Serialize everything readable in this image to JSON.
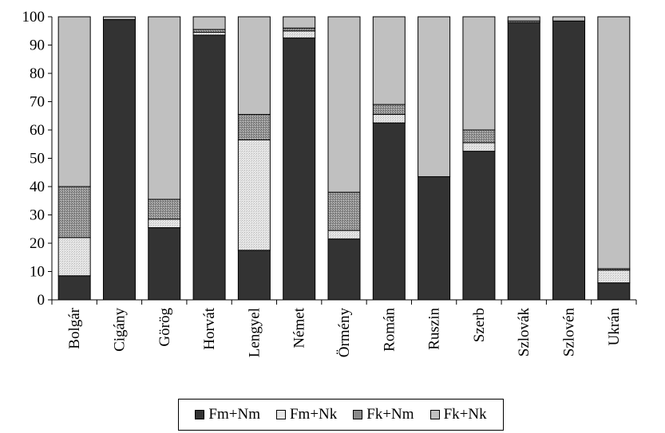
{
  "chart_data": {
    "type": "bar",
    "stacked": true,
    "categories": [
      "Bolgár",
      "Cigány",
      "Görög",
      "Horvát",
      "Lengyel",
      "Német",
      "Örmény",
      "Román",
      "Ruszin",
      "Szerb",
      "Szlovák",
      "Szlovén",
      "Ukrán"
    ],
    "series": [
      {
        "name": "Fm+Nm",
        "color": "#333333",
        "values": [
          8.5,
          99.0,
          25.5,
          93.5,
          17.5,
          92.5,
          21.5,
          62.5,
          43.5,
          52.5,
          98.0,
          98.5,
          6.0
        ]
      },
      {
        "name": "Fm+Nk",
        "color": "#e0e0e0",
        "values": [
          13.5,
          0.0,
          3.0,
          1.0,
          39.0,
          2.5,
          3.0,
          3.0,
          0.0,
          3.0,
          0.5,
          0.0,
          4.5
        ]
      },
      {
        "name": "Fk+Nm",
        "color": "#9a9a9a",
        "values": [
          18.0,
          0.0,
          7.0,
          1.0,
          9.0,
          1.0,
          13.5,
          3.5,
          0.0,
          4.5,
          0.0,
          0.0,
          0.5
        ]
      },
      {
        "name": "Fk+Nk",
        "color": "#c0c0c0",
        "values": [
          60.0,
          1.0,
          64.5,
          4.5,
          34.5,
          4.0,
          62.0,
          31.0,
          56.5,
          40.0,
          1.5,
          1.5,
          89.0
        ]
      }
    ],
    "ylim": [
      0,
      100
    ],
    "yticks": [
      0,
      10,
      20,
      30,
      40,
      50,
      60,
      70,
      80,
      90,
      100
    ],
    "grid": false,
    "legend_position": "bottom"
  }
}
